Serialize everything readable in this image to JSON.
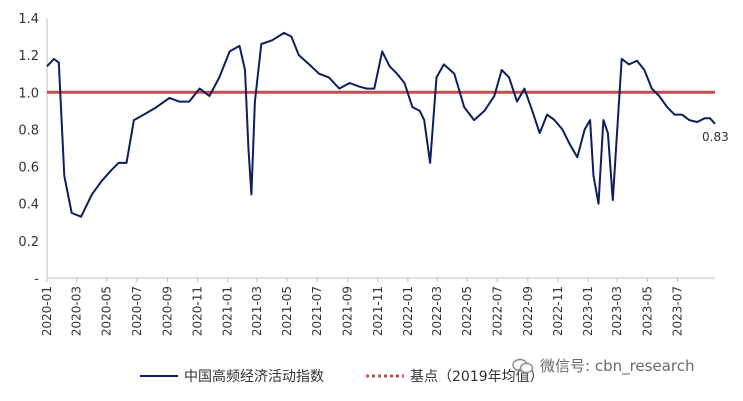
{
  "chart_data": {
    "type": "line",
    "y_axis": {
      "ylim": [
        0,
        1.4
      ],
      "ticks": [
        "-",
        "0.2",
        "0.4",
        "0.6",
        "0.8",
        "1.0",
        "1.2",
        "1.4"
      ],
      "tick_values": [
        0,
        0.2,
        0.4,
        0.6,
        0.8,
        1.0,
        1.2,
        1.4
      ]
    },
    "x_axis": {
      "ticks": [
        "2020-01",
        "2020-03",
        "2020-05",
        "2020-07",
        "2020-09",
        "2020-11",
        "2021-01",
        "2021-03",
        "2021-05",
        "2021-07",
        "2021-09",
        "2021-11",
        "2022-01",
        "2022-03",
        "2022-05",
        "2022-07",
        "2022-09",
        "2022-11",
        "2023-01",
        "2023-03",
        "2023-05",
        "2023-07"
      ]
    },
    "grid": false,
    "legend_position": "bottom",
    "series": [
      {
        "name": "中国高频经济活动指数",
        "color": "#0d1f5c",
        "style": "solid",
        "end_label": "0.83",
        "x": [
          "2020-01-01",
          "2020-01-15",
          "2020-01-25",
          "2020-02-05",
          "2020-02-20",
          "2020-03-10",
          "2020-04-01",
          "2020-04-20",
          "2020-05-10",
          "2020-05-25",
          "2020-06-10",
          "2020-06-25",
          "2020-07-15",
          "2020-08-10",
          "2020-09-05",
          "2020-09-25",
          "2020-10-15",
          "2020-11-05",
          "2020-11-25",
          "2020-12-15",
          "2021-01-05",
          "2021-01-25",
          "2021-02-05",
          "2021-02-12",
          "2021-02-18",
          "2021-02-25",
          "2021-03-10",
          "2021-04-01",
          "2021-04-25",
          "2021-05-10",
          "2021-05-25",
          "2021-06-15",
          "2021-07-05",
          "2021-07-25",
          "2021-08-15",
          "2021-09-05",
          "2021-09-25",
          "2021-10-10",
          "2021-10-25",
          "2021-11-10",
          "2021-11-25",
          "2021-12-10",
          "2021-12-25",
          "2022-01-10",
          "2022-01-25",
          "2022-02-03",
          "2022-02-15",
          "2022-02-28",
          "2022-03-15",
          "2022-04-05",
          "2022-04-25",
          "2022-05-15",
          "2022-06-05",
          "2022-06-25",
          "2022-07-10",
          "2022-07-25",
          "2022-08-10",
          "2022-08-25",
          "2022-09-10",
          "2022-09-25",
          "2022-10-10",
          "2022-10-25",
          "2022-11-10",
          "2022-11-25",
          "2022-12-10",
          "2022-12-25",
          "2023-01-05",
          "2023-01-12",
          "2023-01-22",
          "2023-02-01",
          "2023-02-10",
          "2023-02-20",
          "2023-03-10",
          "2023-03-25",
          "2023-04-10",
          "2023-04-25",
          "2023-05-10",
          "2023-05-25",
          "2023-06-10",
          "2023-06-25",
          "2023-07-10",
          "2023-07-25",
          "2023-08-10",
          "2023-08-25",
          "2023-09-05",
          "2023-09-15"
        ],
        "values": [
          1.14,
          1.18,
          1.16,
          0.55,
          0.35,
          0.33,
          0.45,
          0.52,
          0.58,
          0.62,
          0.62,
          0.85,
          0.88,
          0.92,
          0.97,
          0.95,
          0.95,
          1.02,
          0.98,
          1.08,
          1.22,
          1.25,
          1.12,
          0.7,
          0.45,
          0.95,
          1.26,
          1.28,
          1.32,
          1.3,
          1.2,
          1.15,
          1.1,
          1.08,
          1.02,
          1.05,
          1.03,
          1.02,
          1.02,
          1.22,
          1.14,
          1.1,
          1.05,
          0.92,
          0.9,
          0.85,
          0.62,
          1.08,
          1.15,
          1.1,
          0.92,
          0.85,
          0.9,
          0.98,
          1.12,
          1.08,
          0.95,
          1.02,
          0.9,
          0.78,
          0.88,
          0.85,
          0.8,
          0.72,
          0.65,
          0.8,
          0.85,
          0.55,
          0.4,
          0.85,
          0.78,
          0.42,
          1.18,
          1.15,
          1.17,
          1.12,
          1.02,
          0.98,
          0.92,
          0.88,
          0.88,
          0.85,
          0.84,
          0.86,
          0.86,
          0.83
        ]
      },
      {
        "name": "基点（2019年均值）",
        "color": "#c0504d",
        "style": "dotted",
        "x": [
          "2020-01-01",
          "2023-09-15"
        ],
        "values": [
          1.0,
          1.0
        ]
      }
    ]
  },
  "watermark": {
    "text": "微信号: cbn_research",
    "icon": "wechat-icon"
  }
}
